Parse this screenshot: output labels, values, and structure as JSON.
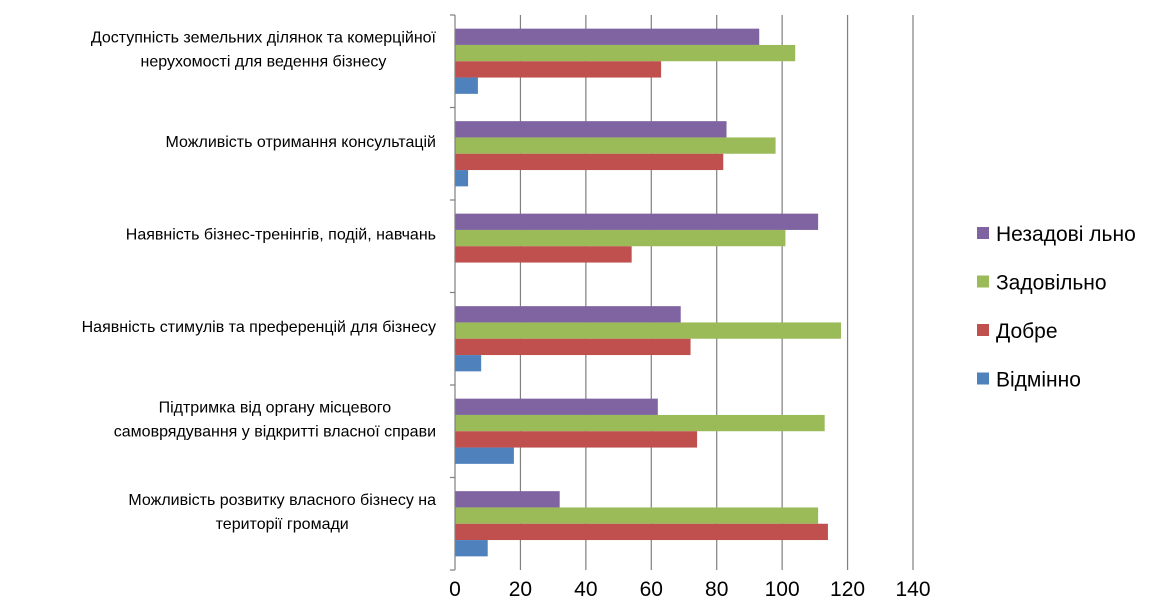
{
  "chart_data": {
    "type": "bar",
    "orientation": "horizontal",
    "categories": [
      [
        "Доступність земельних ділянок та комерційної",
        "нерухомості для ведення бізнесу"
      ],
      [
        "Можливість отримання консультацій"
      ],
      [
        "Наявність бізнес-тренінгів, подій, навчань"
      ],
      [
        "Наявність стимулів та преференцій для бізнесу"
      ],
      [
        "Підтримка від органу місцевого",
        "самоврядування у відкритті власної справи"
      ],
      [
        "Можливість розвитку власного бізнесу на",
        "території громади"
      ]
    ],
    "series": [
      {
        "name": "Незадові льно",
        "color": "#8064A2",
        "values": [
          93,
          83,
          111,
          69,
          62,
          32
        ]
      },
      {
        "name": "Задовільно",
        "color": "#9BBB59",
        "values": [
          104,
          98,
          101,
          118,
          113,
          111
        ]
      },
      {
        "name": "Добре",
        "color": "#C0504D",
        "values": [
          63,
          82,
          54,
          72,
          74,
          114
        ]
      },
      {
        "name": "Відмінно",
        "color": "#4F81BD",
        "values": [
          7,
          4,
          0,
          8,
          18,
          10
        ]
      }
    ],
    "xlim": [
      0,
      140
    ],
    "xticks": [
      "0",
      "20",
      "40",
      "60",
      "80",
      "100",
      "120",
      "140"
    ],
    "grid": true,
    "legend": "right",
    "title": "",
    "xlabel": "",
    "ylabel": ""
  }
}
